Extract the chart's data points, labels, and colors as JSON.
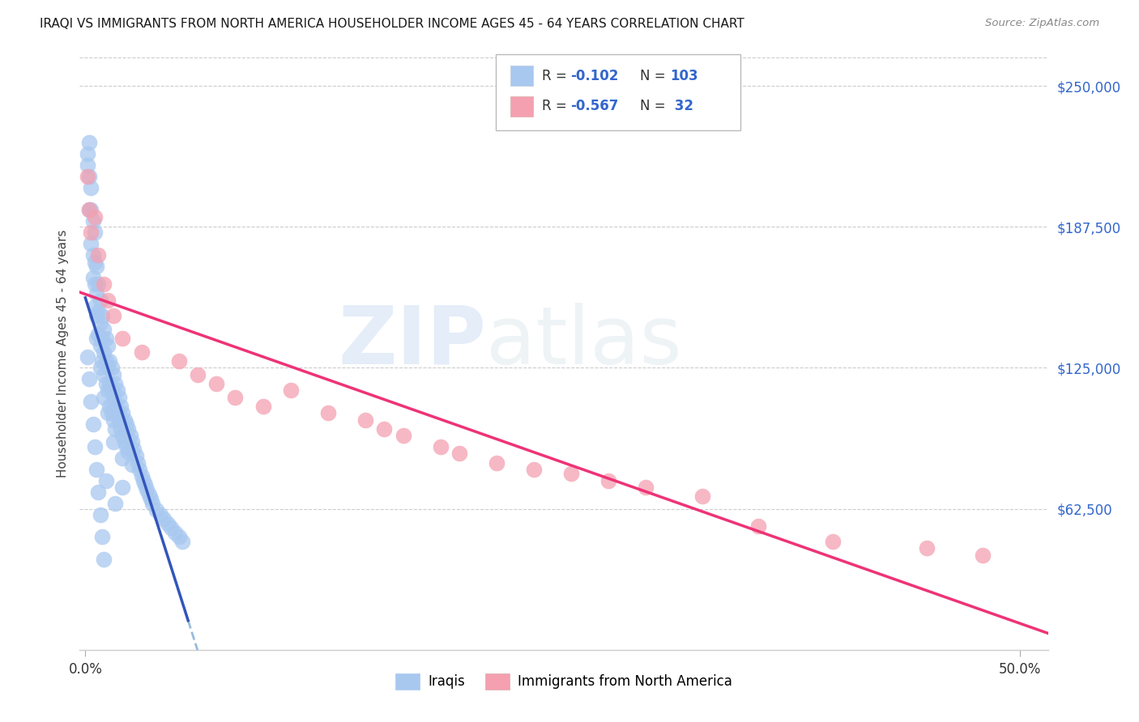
{
  "title": "IRAQI VS IMMIGRANTS FROM NORTH AMERICA HOUSEHOLDER INCOME AGES 45 - 64 YEARS CORRELATION CHART",
  "source": "Source: ZipAtlas.com",
  "ylabel": "Householder Income Ages 45 - 64 years",
  "ytick_labels": [
    "$250,000",
    "$187,500",
    "$125,000",
    "$62,500"
  ],
  "ytick_values": [
    250000,
    187500,
    125000,
    62500
  ],
  "ymin": 0,
  "ymax": 262500,
  "xmin": -0.003,
  "xmax": 0.515,
  "iraqi_color": "#a8c8f0",
  "immigrant_color": "#f4a0b0",
  "line_iraqi_color": "#3355bb",
  "line_immigrant_color": "#ee3377",
  "dashed_line_color": "#99bbdd",
  "background_color": "#ffffff",
  "iraqi_points_x": [
    0.001,
    0.001,
    0.002,
    0.002,
    0.002,
    0.003,
    0.003,
    0.003,
    0.004,
    0.004,
    0.004,
    0.005,
    0.005,
    0.005,
    0.005,
    0.006,
    0.006,
    0.006,
    0.006,
    0.007,
    0.007,
    0.007,
    0.008,
    0.008,
    0.008,
    0.008,
    0.009,
    0.009,
    0.009,
    0.01,
    0.01,
    0.01,
    0.01,
    0.011,
    0.011,
    0.011,
    0.012,
    0.012,
    0.012,
    0.012,
    0.013,
    0.013,
    0.013,
    0.014,
    0.014,
    0.014,
    0.015,
    0.015,
    0.015,
    0.015,
    0.016,
    0.016,
    0.016,
    0.017,
    0.017,
    0.018,
    0.018,
    0.019,
    0.019,
    0.02,
    0.02,
    0.02,
    0.021,
    0.021,
    0.022,
    0.022,
    0.023,
    0.023,
    0.024,
    0.025,
    0.025,
    0.026,
    0.027,
    0.028,
    0.029,
    0.03,
    0.031,
    0.032,
    0.033,
    0.034,
    0.035,
    0.036,
    0.038,
    0.04,
    0.042,
    0.044,
    0.046,
    0.048,
    0.05,
    0.052,
    0.001,
    0.002,
    0.003,
    0.004,
    0.005,
    0.006,
    0.007,
    0.008,
    0.009,
    0.01,
    0.011,
    0.016,
    0.02
  ],
  "iraqi_points_y": [
    220000,
    215000,
    225000,
    210000,
    195000,
    205000,
    195000,
    180000,
    190000,
    175000,
    165000,
    185000,
    172000,
    162000,
    152000,
    170000,
    158000,
    148000,
    138000,
    162000,
    150000,
    140000,
    155000,
    145000,
    135000,
    125000,
    148000,
    138000,
    128000,
    142000,
    132000,
    122000,
    112000,
    138000,
    128000,
    118000,
    135000,
    125000,
    115000,
    105000,
    128000,
    118000,
    108000,
    125000,
    115000,
    105000,
    122000,
    112000,
    102000,
    92000,
    118000,
    108000,
    98000,
    115000,
    105000,
    112000,
    102000,
    108000,
    98000,
    105000,
    95000,
    85000,
    102000,
    92000,
    100000,
    90000,
    98000,
    88000,
    95000,
    92000,
    82000,
    89000,
    86000,
    83000,
    80000,
    77000,
    75000,
    73000,
    71000,
    69000,
    67000,
    65000,
    62000,
    60000,
    58000,
    56000,
    54000,
    52000,
    50000,
    48000,
    130000,
    120000,
    110000,
    100000,
    90000,
    80000,
    70000,
    60000,
    50000,
    40000,
    75000,
    65000,
    72000
  ],
  "immigrant_points_x": [
    0.001,
    0.002,
    0.003,
    0.005,
    0.007,
    0.01,
    0.012,
    0.015,
    0.02,
    0.03,
    0.05,
    0.06,
    0.07,
    0.08,
    0.095,
    0.11,
    0.13,
    0.15,
    0.16,
    0.17,
    0.19,
    0.2,
    0.22,
    0.24,
    0.26,
    0.28,
    0.3,
    0.33,
    0.36,
    0.4,
    0.45,
    0.48
  ],
  "immigrant_points_y": [
    210000,
    195000,
    185000,
    192000,
    175000,
    162000,
    155000,
    148000,
    138000,
    132000,
    128000,
    122000,
    118000,
    112000,
    108000,
    115000,
    105000,
    102000,
    98000,
    95000,
    90000,
    87000,
    83000,
    80000,
    78000,
    75000,
    72000,
    68000,
    55000,
    48000,
    45000,
    42000
  ],
  "legend_items": [
    {
      "label": "R = -0.102  N = 103",
      "color": "#a8c8f0"
    },
    {
      "label": "R = -0.567  N =  32",
      "color": "#f4a0b0"
    }
  ]
}
